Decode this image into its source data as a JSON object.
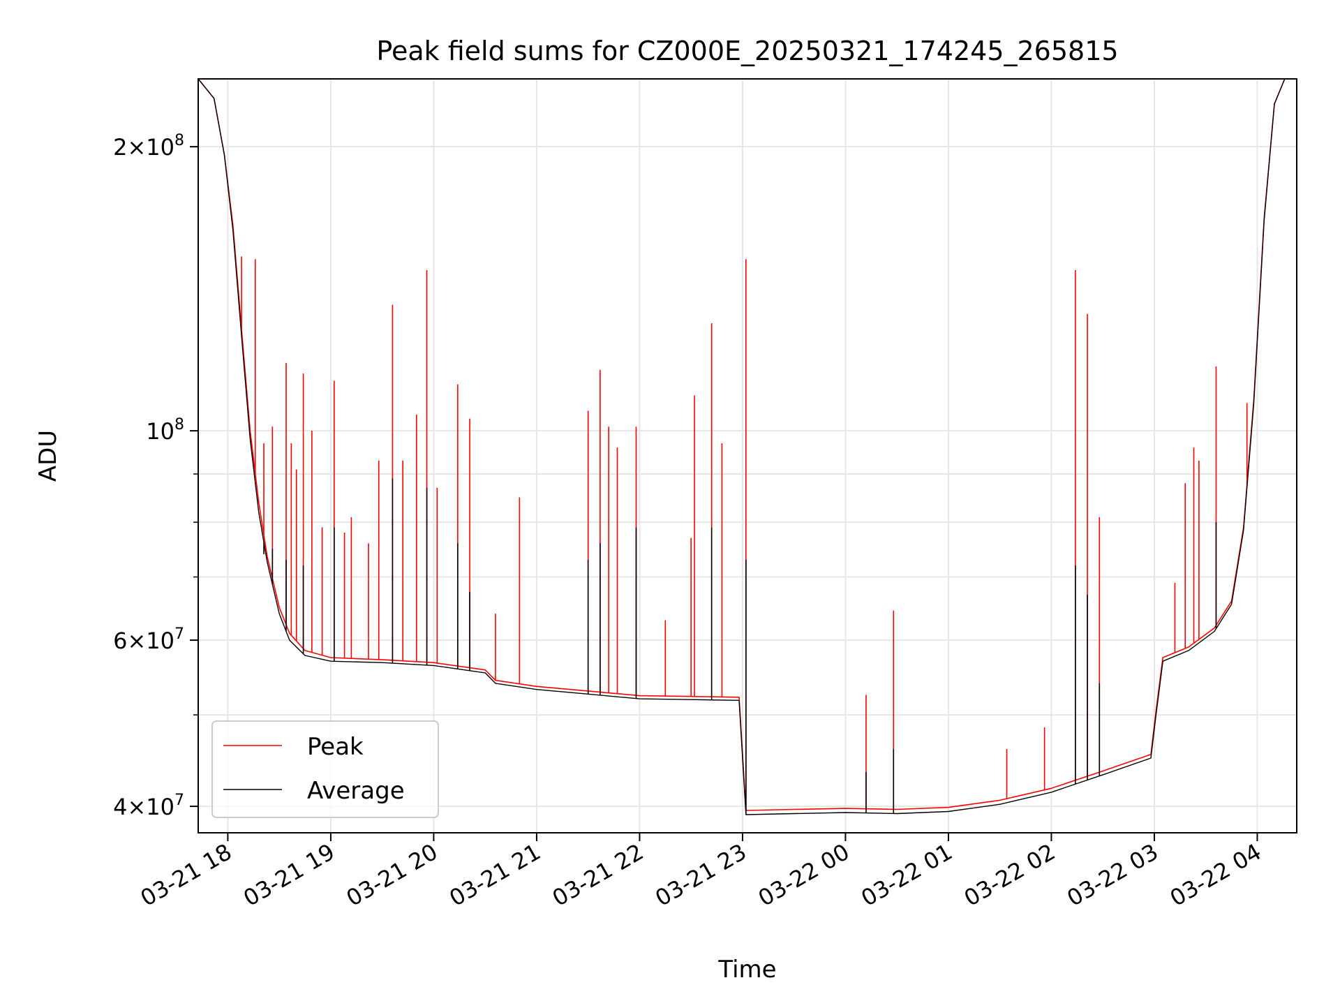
{
  "chart_data": {
    "type": "line",
    "title": "Peak field sums for CZ000E_20250321_174245_265815",
    "xlabel": "Time",
    "ylabel": "ADU",
    "x_unit": "hours",
    "xlim": [
      "2025-03-21 17:42:45",
      "2025-03-22 04:23:00"
    ],
    "ylim": [
      37500000,
      236000000
    ],
    "yscale": "log",
    "grid": true,
    "legend_position": "lower left",
    "x_ticks": [
      "03-21 18",
      "03-21 19",
      "03-21 20",
      "03-21 21",
      "03-21 22",
      "03-21 23",
      "03-22 00",
      "03-22 01",
      "03-22 02",
      "03-22 03",
      "03-22 04"
    ],
    "x_tick_times": [
      "2025-03-21 18:00",
      "2025-03-21 19:00",
      "2025-03-21 20:00",
      "2025-03-21 21:00",
      "2025-03-21 22:00",
      "2025-03-21 23:00",
      "2025-03-22 00:00",
      "2025-03-22 01:00",
      "2025-03-22 02:00",
      "2025-03-22 03:00",
      "2025-03-22 04:00"
    ],
    "y_ticks": [
      {
        "value": 200000000,
        "mantissa": "2",
        "base": "10",
        "exponent": "8"
      },
      {
        "value": 100000000,
        "mantissa": "",
        "base": "10",
        "exponent": "8"
      },
      {
        "value": 60000000,
        "mantissa": "6",
        "base": "10",
        "exponent": "7"
      },
      {
        "value": 40000000,
        "mantissa": "4",
        "base": "10",
        "exponent": "7"
      }
    ],
    "y_minor_ticks": [
      50000000,
      70000000,
      80000000,
      90000000
    ],
    "series": [
      {
        "name": "Peak",
        "color": "#ff0000",
        "baseline": [
          [
            "2025-03-21 17:42:45",
            236000000
          ],
          [
            "2025-03-21 17:52:00",
            225000000
          ],
          [
            "2025-03-21 17:58:00",
            196000000
          ],
          [
            "2025-03-21 18:03:00",
            165000000
          ],
          [
            "2025-03-21 18:08:00",
            128000000
          ],
          [
            "2025-03-21 18:13:00",
            100000000
          ],
          [
            "2025-03-21 18:18:00",
            84000000
          ],
          [
            "2025-03-21 18:23:00",
            73500000
          ],
          [
            "2025-03-21 18:30:00",
            65000000
          ],
          [
            "2025-03-21 18:36:00",
            61000000
          ],
          [
            "2025-03-21 18:45:00",
            58500000
          ],
          [
            "2025-03-21 19:00:00",
            57500000
          ],
          [
            "2025-03-21 19:30:00",
            57200000
          ],
          [
            "2025-03-21 20:00:00",
            56800000
          ],
          [
            "2025-03-21 20:30:00",
            55800000
          ],
          [
            "2025-03-21 20:36:00",
            54400000
          ],
          [
            "2025-03-21 21:00:00",
            53600000
          ],
          [
            "2025-03-21 21:30:00",
            53000000
          ],
          [
            "2025-03-21 22:00:00",
            52400000
          ],
          [
            "2025-03-21 22:30:00",
            52300000
          ],
          [
            "2025-03-21 22:58:00",
            52200000
          ],
          [
            "2025-03-21 23:02:00",
            39600000
          ],
          [
            "2025-03-21 23:30:00",
            39700000
          ],
          [
            "2025-03-22 00:00:00",
            39800000
          ],
          [
            "2025-03-22 00:30:00",
            39700000
          ],
          [
            "2025-03-22 01:00:00",
            39900000
          ],
          [
            "2025-03-22 01:30:00",
            40600000
          ],
          [
            "2025-03-22 02:00:00",
            41800000
          ],
          [
            "2025-03-22 02:30:00",
            43600000
          ],
          [
            "2025-03-22 02:58:00",
            45400000
          ],
          [
            "2025-03-22 03:01:00",
            50500000
          ],
          [
            "2025-03-22 03:05:00",
            57500000
          ],
          [
            "2025-03-22 03:20:00",
            59000000
          ],
          [
            "2025-03-22 03:35:00",
            61800000
          ],
          [
            "2025-03-22 03:45:00",
            66000000
          ],
          [
            "2025-03-22 03:52:00",
            79000000
          ],
          [
            "2025-03-22 03:58:00",
            108000000
          ],
          [
            "2025-03-22 04:04:00",
            168000000
          ],
          [
            "2025-03-22 04:10:00",
            222000000
          ],
          [
            "2025-03-22 04:16:00",
            236000000
          ],
          [
            "2025-03-22 04:23:00",
            236000000
          ]
        ],
        "spikes": [
          [
            "2025-03-21 18:08:00",
            153000000
          ],
          [
            "2025-03-21 18:16:00",
            152000000
          ],
          [
            "2025-03-21 18:21:00",
            97000000
          ],
          [
            "2025-03-21 18:26:00",
            101000000
          ],
          [
            "2025-03-21 18:34:00",
            118000000
          ],
          [
            "2025-03-21 18:37:00",
            97000000
          ],
          [
            "2025-03-21 18:40:00",
            91000000
          ],
          [
            "2025-03-21 18:44:00",
            115000000
          ],
          [
            "2025-03-21 18:49:00",
            100000000
          ],
          [
            "2025-03-21 18:55:00",
            79000000
          ],
          [
            "2025-03-21 19:02:00",
            113000000
          ],
          [
            "2025-03-21 19:08:00",
            78000000
          ],
          [
            "2025-03-21 19:12:00",
            81000000
          ],
          [
            "2025-03-21 19:22:00",
            76000000
          ],
          [
            "2025-03-21 19:28:00",
            93000000
          ],
          [
            "2025-03-21 19:36:00",
            136000000
          ],
          [
            "2025-03-21 19:42:00",
            93000000
          ],
          [
            "2025-03-21 19:50:00",
            104000000
          ],
          [
            "2025-03-21 19:56:00",
            148000000
          ],
          [
            "2025-03-21 20:02:00",
            87000000
          ],
          [
            "2025-03-21 20:14:00",
            112000000
          ],
          [
            "2025-03-21 20:21:00",
            103000000
          ],
          [
            "2025-03-21 20:36:00",
            64000000
          ],
          [
            "2025-03-21 20:50:00",
            85000000
          ],
          [
            "2025-03-21 21:30:00",
            105000000
          ],
          [
            "2025-03-21 21:37:00",
            116000000
          ],
          [
            "2025-03-21 21:42:00",
            101000000
          ],
          [
            "2025-03-21 21:47:00",
            96000000
          ],
          [
            "2025-03-21 21:58:00",
            101000000
          ],
          [
            "2025-03-21 22:15:00",
            63000000
          ],
          [
            "2025-03-21 22:30:00",
            77000000
          ],
          [
            "2025-03-21 22:32:00",
            109000000
          ],
          [
            "2025-03-21 22:42:00",
            130000000
          ],
          [
            "2025-03-21 22:48:00",
            97000000
          ],
          [
            "2025-03-21 23:02:00",
            152000000
          ],
          [
            "2025-03-22 00:12:00",
            52500000
          ],
          [
            "2025-03-22 00:28:00",
            64500000
          ],
          [
            "2025-03-22 01:34:00",
            46000000
          ],
          [
            "2025-03-22 01:56:00",
            48500000
          ],
          [
            "2025-03-22 02:14:00",
            148000000
          ],
          [
            "2025-03-22 02:21:00",
            133000000
          ],
          [
            "2025-03-22 02:28:00",
            81000000
          ],
          [
            "2025-03-22 03:12:00",
            69000000
          ],
          [
            "2025-03-22 03:18:00",
            88000000
          ],
          [
            "2025-03-22 03:23:00",
            96000000
          ],
          [
            "2025-03-22 03:26:00",
            93000000
          ],
          [
            "2025-03-22 03:36:00",
            117000000
          ],
          [
            "2025-03-22 03:54:00",
            107000000
          ]
        ]
      },
      {
        "name": "Average",
        "color": "#000000",
        "baseline": [
          [
            "2025-03-21 17:42:45",
            236000000
          ],
          [
            "2025-03-21 17:52:00",
            225000000
          ],
          [
            "2025-03-21 17:58:00",
            196000000
          ],
          [
            "2025-03-21 18:03:00",
            163000000
          ],
          [
            "2025-03-21 18:08:00",
            126000000
          ],
          [
            "2025-03-21 18:13:00",
            98000000
          ],
          [
            "2025-03-21 18:18:00",
            82000000
          ],
          [
            "2025-03-21 18:23:00",
            72500000
          ],
          [
            "2025-03-21 18:30:00",
            64000000
          ],
          [
            "2025-03-21 18:36:00",
            60000000
          ],
          [
            "2025-03-21 18:45:00",
            57800000
          ],
          [
            "2025-03-21 19:00:00",
            57000000
          ],
          [
            "2025-03-21 19:30:00",
            56800000
          ],
          [
            "2025-03-21 20:00:00",
            56400000
          ],
          [
            "2025-03-21 20:30:00",
            55400000
          ],
          [
            "2025-03-21 20:36:00",
            54000000
          ],
          [
            "2025-03-21 21:00:00",
            53200000
          ],
          [
            "2025-03-21 21:30:00",
            52600000
          ],
          [
            "2025-03-21 22:00:00",
            52000000
          ],
          [
            "2025-03-21 22:30:00",
            51900000
          ],
          [
            "2025-03-21 22:58:00",
            51800000
          ],
          [
            "2025-03-21 23:02:00",
            39200000
          ],
          [
            "2025-03-21 23:30:00",
            39300000
          ],
          [
            "2025-03-22 00:00:00",
            39400000
          ],
          [
            "2025-03-22 00:30:00",
            39300000
          ],
          [
            "2025-03-22 01:00:00",
            39500000
          ],
          [
            "2025-03-22 01:30:00",
            40200000
          ],
          [
            "2025-03-22 02:00:00",
            41400000
          ],
          [
            "2025-03-22 02:30:00",
            43200000
          ],
          [
            "2025-03-22 02:58:00",
            45000000
          ],
          [
            "2025-03-22 03:01:00",
            50000000
          ],
          [
            "2025-03-22 03:05:00",
            57000000
          ],
          [
            "2025-03-22 03:20:00",
            58500000
          ],
          [
            "2025-03-22 03:35:00",
            61300000
          ],
          [
            "2025-03-22 03:45:00",
            65500000
          ],
          [
            "2025-03-22 03:52:00",
            78500000
          ],
          [
            "2025-03-22 03:58:00",
            107000000
          ],
          [
            "2025-03-22 04:04:00",
            167000000
          ],
          [
            "2025-03-22 04:10:00",
            222000000
          ],
          [
            "2025-03-22 04:16:00",
            236000000
          ],
          [
            "2025-03-22 04:23:00",
            236000000
          ]
        ],
        "spikes": [
          [
            "2025-03-21 18:21:00",
            74000000
          ],
          [
            "2025-03-21 18:26:00",
            75000000
          ],
          [
            "2025-03-21 18:34:00",
            73000000
          ],
          [
            "2025-03-21 18:44:00",
            72000000
          ],
          [
            "2025-03-21 19:02:00",
            79000000
          ],
          [
            "2025-03-21 19:36:00",
            89000000
          ],
          [
            "2025-03-21 19:56:00",
            87000000
          ],
          [
            "2025-03-21 20:14:00",
            76000000
          ],
          [
            "2025-03-21 20:21:00",
            67500000
          ],
          [
            "2025-03-21 21:30:00",
            73000000
          ],
          [
            "2025-03-21 21:37:00",
            76000000
          ],
          [
            "2025-03-21 21:58:00",
            79000000
          ],
          [
            "2025-03-21 22:42:00",
            79000000
          ],
          [
            "2025-03-21 23:02:00",
            73000000
          ],
          [
            "2025-03-22 00:12:00",
            43500000
          ],
          [
            "2025-03-22 00:28:00",
            46000000
          ],
          [
            "2025-03-22 02:14:00",
            72000000
          ],
          [
            "2025-03-22 02:21:00",
            67000000
          ],
          [
            "2025-03-22 02:28:00",
            54000000
          ],
          [
            "2025-03-22 03:36:00",
            80000000
          ]
        ]
      }
    ]
  }
}
